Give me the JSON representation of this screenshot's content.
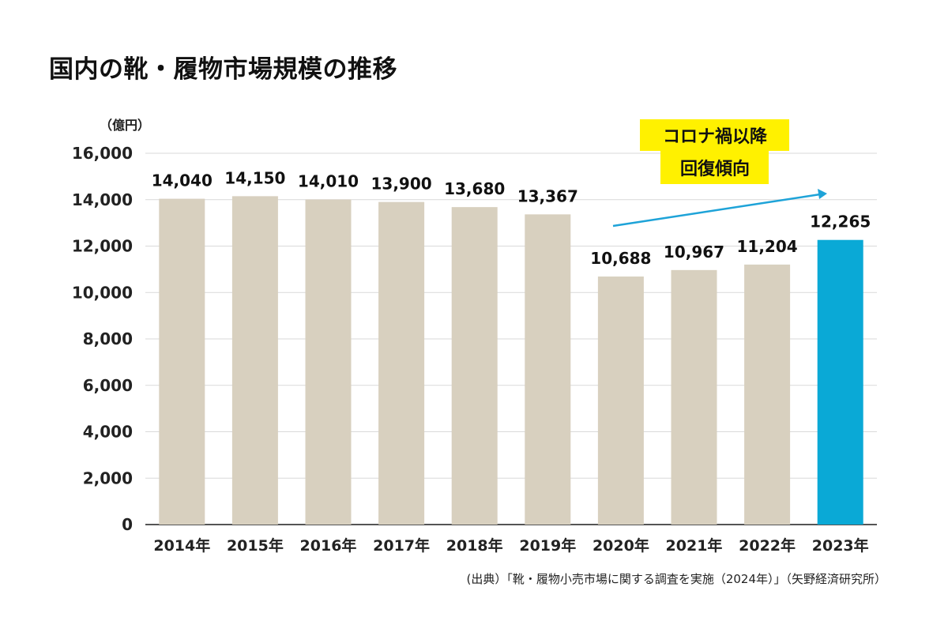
{
  "title": "国内の靴・履物市場規模の推移",
  "unit_label": "（億円）",
  "callout": {
    "line1": "コロナ禍以降",
    "line2": "回復傾向"
  },
  "source": "(出典）「靴・履物小売市場に関する調査を実施（2024年）」（矢野経済研究所）",
  "colors": {
    "bar_default": "#d8d0bf",
    "bar_highlight": "#0aa9d6",
    "callout_bg": "#fff100",
    "trend_arrow": "#1ea3d8",
    "grid": "#d9d9d9"
  },
  "chart_data": {
    "type": "bar",
    "title": "国内の靴・履物市場規模の推移",
    "ylabel": "（億円）",
    "xlabel": "",
    "categories": [
      "2014年",
      "2015年",
      "2016年",
      "2017年",
      "2018年",
      "2019年",
      "2020年",
      "2021年",
      "2022年",
      "2023年"
    ],
    "values": [
      14040,
      14150,
      14010,
      13900,
      13680,
      13367,
      10688,
      10967,
      11204,
      12265
    ],
    "data_labels": [
      "14,040",
      "14,150",
      "14,010",
      "13,900",
      "13,680",
      "13,367",
      "10,688",
      "10,967",
      "11,204",
      "12,265"
    ],
    "highlight_index": 9,
    "ylim": [
      0,
      16000
    ],
    "yticks": [
      0,
      2000,
      4000,
      6000,
      8000,
      10000,
      12000,
      14000,
      16000
    ],
    "ytick_labels": [
      "0",
      "2,000",
      "4,000",
      "6,000",
      "8,000",
      "10,000",
      "12,000",
      "14,000",
      "16,000"
    ],
    "grid": true,
    "legend": "none"
  }
}
